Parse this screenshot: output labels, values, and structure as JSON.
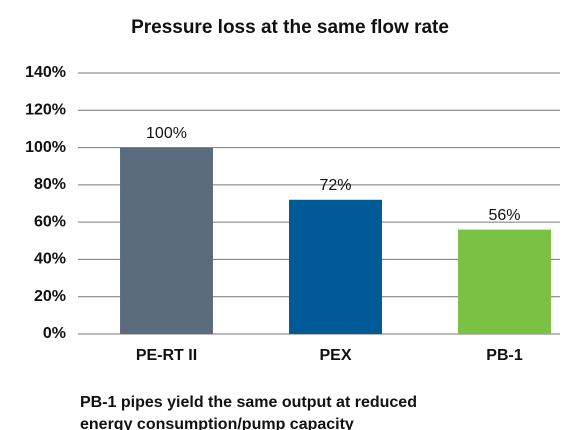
{
  "chart_data": {
    "type": "bar",
    "title": "Pressure loss at the same flow rate",
    "categories": [
      "PE-RT II",
      "PEX",
      "PB-1"
    ],
    "values": [
      100,
      72,
      56
    ],
    "value_labels": [
      "100%",
      "72%",
      "56%"
    ],
    "colors": [
      "#5a6b7b",
      "#005a97",
      "#7bc143"
    ],
    "ylim": [
      0,
      140
    ],
    "yticks": [
      {
        "value": 0,
        "label": "0%"
      },
      {
        "value": 20,
        "label": "20%"
      },
      {
        "value": 40,
        "label": "40%"
      },
      {
        "value": 60,
        "label": "60%"
      },
      {
        "value": 80,
        "label": "80%"
      },
      {
        "value": 100,
        "label": "100%"
      },
      {
        "value": 120,
        "label": "120%"
      },
      {
        "value": 140,
        "label": "140%"
      }
    ],
    "grid": true,
    "caption": [
      "PB-1 pipes yield the same output at reduced",
      "energy consumption/pump capacity"
    ]
  }
}
